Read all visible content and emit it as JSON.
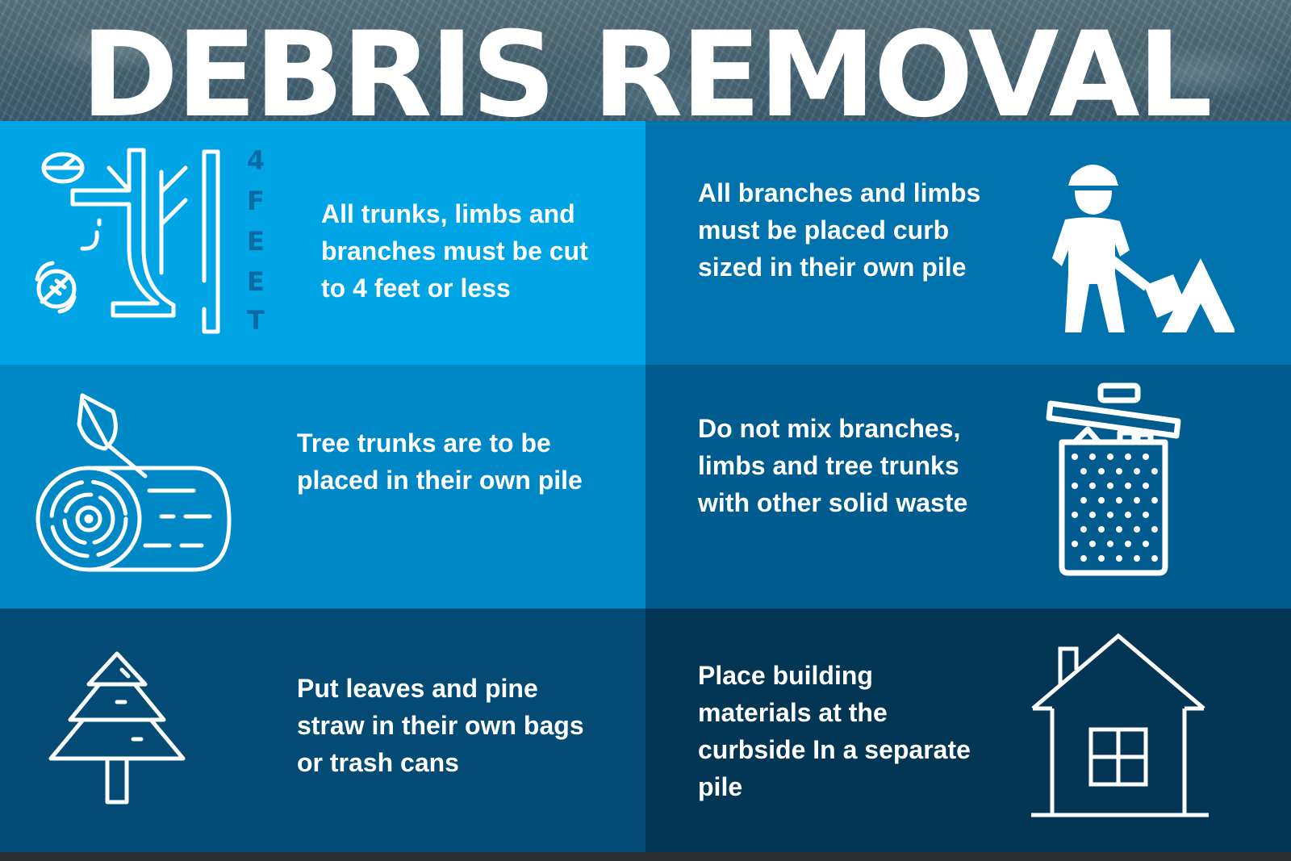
{
  "title": "DEBRIS REMOVAL",
  "colors": {
    "cell_1": "#00a5e6",
    "cell_2": "#0072ad",
    "cell_3": "#0088c6",
    "cell_4": "#005b8f",
    "cell_5": "#034b74",
    "cell_6": "#033555",
    "text": "#ffffff"
  },
  "feet_label": [
    "4",
    "F",
    "E",
    "E",
    "T"
  ],
  "items": [
    {
      "text": "All trunks, limbs and branches must be cut to 4 feet or less",
      "icon": "tree-branch-icon"
    },
    {
      "text": "All branches and limbs must be placed curb sized in their own pile",
      "icon": "worker-shovel-icon"
    },
    {
      "text": "Tree trunks are to be placed in their own pile",
      "icon": "log-icon"
    },
    {
      "text": "Do not mix branches, limbs and tree trunks with other solid waste",
      "icon": "trash-can-icon"
    },
    {
      "text": "Put leaves and pine straw in their own bags or trash cans",
      "icon": "pine-tree-icon"
    },
    {
      "text": "Place building materials at the curbside In a separate pile",
      "icon": "house-icon"
    }
  ]
}
